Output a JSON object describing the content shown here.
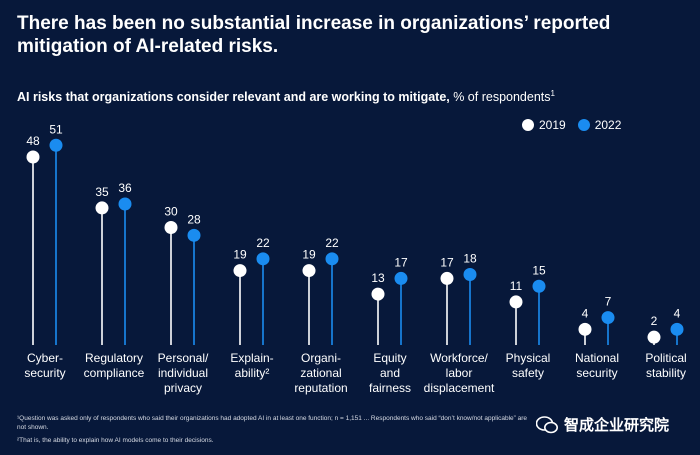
{
  "title_line1": "There has been no substantial increase in organizations’ reported",
  "title_line2": "mitigation of AI-related risks.",
  "subtitle_bold": "AI risks that organizations consider relevant and are working to mitigate,",
  "subtitle_rest": " % of respondents",
  "subtitle_sup": "1",
  "legend": [
    {
      "label": "2019",
      "color": "#ffffff"
    },
    {
      "label": "2022",
      "color": "#1a8cf0"
    }
  ],
  "chart_data": {
    "type": "lollipop",
    "categories": [
      [
        "Cyber-",
        "security"
      ],
      [
        "Regulatory",
        "compliance"
      ],
      [
        "Personal/",
        "individual",
        "privacy"
      ],
      [
        "Explain-",
        "ability²"
      ],
      [
        "Organi-",
        "zational",
        "reputation"
      ],
      [
        "Equity",
        "and",
        "fairness"
      ],
      [
        "Workforce/",
        "labor",
        "displacement"
      ],
      [
        "Physical",
        "safety"
      ],
      [
        "National",
        "security"
      ],
      [
        "Political",
        "stability"
      ]
    ],
    "series": [
      {
        "name": "2019",
        "color": "#ffffff",
        "values": [
          48,
          35,
          30,
          19,
          19,
          13,
          17,
          11,
          4,
          2
        ]
      },
      {
        "name": "2022",
        "color": "#1a8cf0",
        "values": [
          51,
          36,
          28,
          22,
          22,
          17,
          18,
          15,
          7,
          4
        ]
      }
    ],
    "ylim": [
      0,
      60
    ]
  },
  "footnote1": "¹Question was asked only of respondents who said their organizations had adopted AI in at least one function; n = 1,151 ... Respondents who said “don’t know/not applicable” are not shown.",
  "footnote2": "²That is, the ability to explain how AI models come to their decisions.",
  "watermark": "智成企业研究院"
}
